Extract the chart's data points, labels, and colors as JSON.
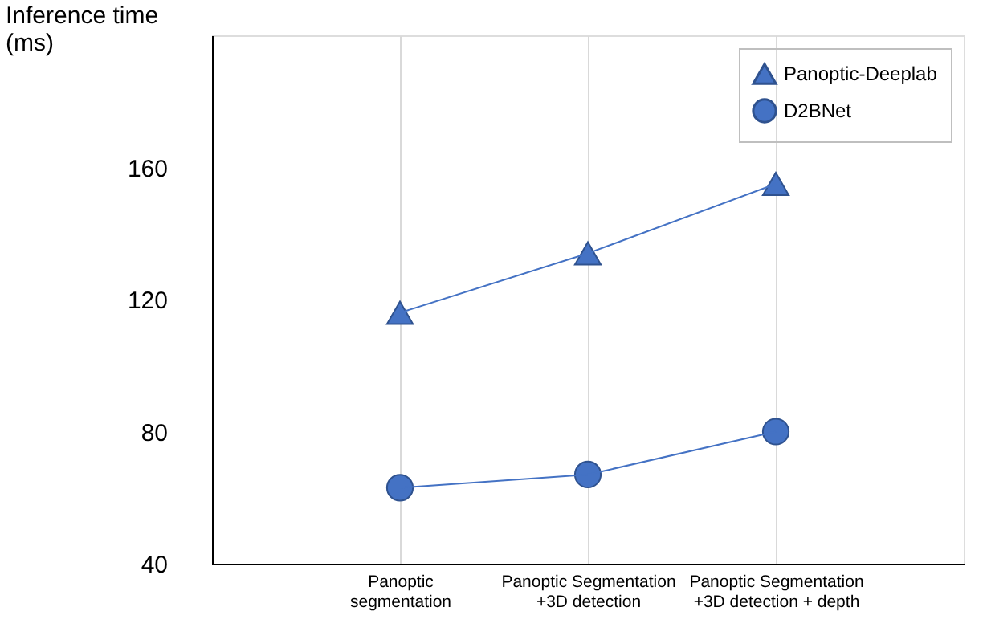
{
  "chart_data": {
    "type": "line",
    "ylabel": "Inference time\n(ms)",
    "categories": [
      "Panoptic\nsegmentation",
      "Panoptic Segmentation\n+3D detection",
      "Panoptic Segmentation\n+3D detection + depth"
    ],
    "series": [
      {
        "name": "Panoptic-Deeplab",
        "color": "#4472c4",
        "marker": "triangle",
        "values": [
          116,
          134,
          155
        ]
      },
      {
        "name": "D2BNet",
        "color": "#4472c4",
        "marker": "circle",
        "values": [
          63,
          67,
          80
        ]
      }
    ],
    "ylim": [
      40,
      200
    ],
    "yticks": [
      40,
      80,
      120,
      160
    ],
    "grid": "x",
    "legend": "top right",
    "line_style": "solid"
  }
}
